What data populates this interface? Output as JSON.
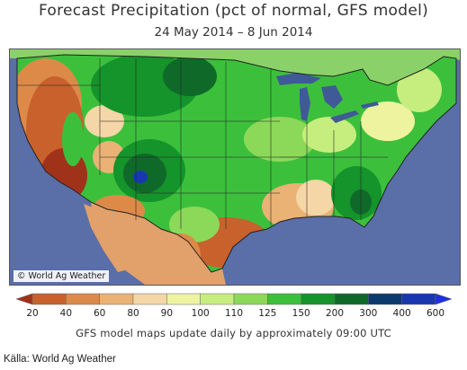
{
  "title": "Forecast Precipitation (pct of normal, GFS model)",
  "subtitle": "24 May 2014 – 8 Jun 2014",
  "map_credit": "© World Ag Weather",
  "legend": {
    "bins": [
      {
        "color": "#a0321a"
      },
      {
        "color": "#c8612c"
      },
      {
        "color": "#dd8a48"
      },
      {
        "color": "#eab274"
      },
      {
        "color": "#f5d6a6"
      },
      {
        "color": "#eef3a0"
      },
      {
        "color": "#c6ee7e"
      },
      {
        "color": "#8cd95a"
      },
      {
        "color": "#3cc03c"
      },
      {
        "color": "#14942a"
      },
      {
        "color": "#0f6a2a"
      },
      {
        "color": "#0b3a6e"
      },
      {
        "color": "#1838b0"
      },
      {
        "color": "#1f2fe0"
      }
    ],
    "labels": [
      "20",
      "40",
      "60",
      "80",
      "90",
      "100",
      "110",
      "125",
      "150",
      "200",
      "300",
      "400",
      "600"
    ]
  },
  "footer": "GFS model maps update daily by approximately 09:00 UTC",
  "source": "Källa: World Ag Weather",
  "colors": {
    "ocean": "#5a6ea8",
    "lakes": "#3f5a96",
    "canada": "#8bd16a",
    "mexico": "#e2a06a"
  }
}
